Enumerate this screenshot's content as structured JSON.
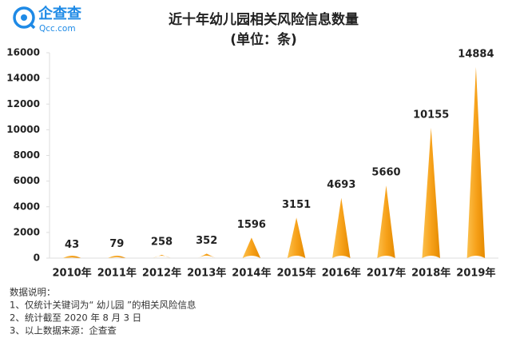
{
  "logo": {
    "name": "企查查",
    "site": "Qcc.com"
  },
  "chart_data": {
    "type": "bar",
    "title": "近十年幼儿园相关风险信息数量",
    "subtitle": "(单位：条)",
    "categories": [
      "2010年",
      "2011年",
      "2012年",
      "2013年",
      "2014年",
      "2015年",
      "2016年",
      "2017年",
      "2018年",
      "2019年"
    ],
    "values": [
      43,
      79,
      258,
      352,
      1596,
      3151,
      4693,
      5660,
      10155,
      14884
    ],
    "color": "#f7a21b",
    "ylim": [
      0,
      16000
    ],
    "yticks": [
      0,
      2000,
      4000,
      6000,
      8000,
      10000,
      12000,
      14000,
      16000
    ],
    "grid": false
  },
  "notes": [
    "数据说明：",
    "1、仅统计关键词为“ 幼儿园 ”的相关风险信息",
    "2、统计截至 2020 年 8 月 3 日",
    "3、以上数据来源：企查查"
  ]
}
